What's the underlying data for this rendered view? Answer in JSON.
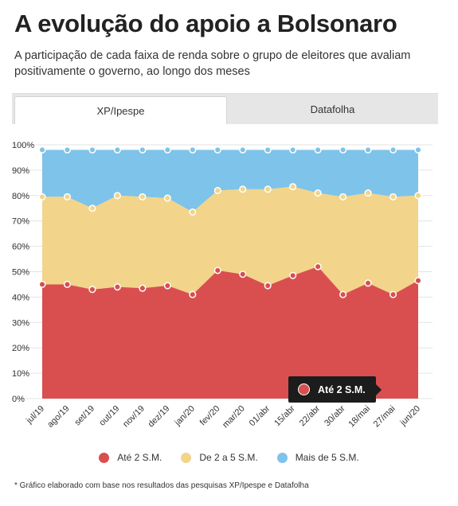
{
  "header": {
    "title": "A evolução do apoio a Bolsonaro",
    "subtitle": "A participação de cada faixa de renda sobre o grupo de eleitores que avaliam positivamente o governo, ao longo dos meses"
  },
  "tabs": [
    {
      "label": "XP/Ipespe",
      "active": true
    },
    {
      "label": "Datafolha",
      "active": false
    }
  ],
  "chart_data": {
    "type": "area",
    "stacked": true,
    "categories": [
      "jul/19",
      "ago/19",
      "set/19",
      "out/19",
      "nov/19",
      "dez/19",
      "jan/20",
      "fev/20",
      "mar/20",
      "01/abr",
      "15/abr",
      "22/abr",
      "30/abr",
      "18/mai",
      "27/mai",
      "jun/20"
    ],
    "series": [
      {
        "name": "Até 2 S.M.",
        "color": "#d94f4f",
        "cumulative": [
          45,
          45,
          43,
          44,
          43.5,
          44.5,
          41,
          50.5,
          49,
          44.5,
          48.5,
          52,
          41,
          45.5,
          41,
          46.5
        ]
      },
      {
        "name": "De 2 a 5 S.M.",
        "color": "#f2d48a",
        "cumulative": [
          79.5,
          79.5,
          75,
          80,
          79.5,
          79,
          73.5,
          82,
          82.5,
          82.5,
          83.5,
          81,
          79.5,
          81,
          79.5,
          80
        ]
      },
      {
        "name": "Mais de 5 S.M.",
        "color": "#7ec3e9",
        "cumulative": [
          98,
          98,
          98,
          98,
          98,
          98,
          98,
          98,
          98,
          98,
          98,
          98,
          98,
          98,
          98,
          98
        ]
      }
    ],
    "ylim": [
      0,
      100
    ],
    "yticks": [
      "0%",
      "10%",
      "20%",
      "30%",
      "40%",
      "50%",
      "60%",
      "70%",
      "80%",
      "90%",
      "100%"
    ],
    "grid": true,
    "legend": "bottom"
  },
  "tooltip": {
    "label": "Até 2 S.M.",
    "color": "#d94f4f"
  },
  "footnote": "* Gráfico elaborado com base nos resultados das pesquisas XP/Ipespe e Datafolha"
}
